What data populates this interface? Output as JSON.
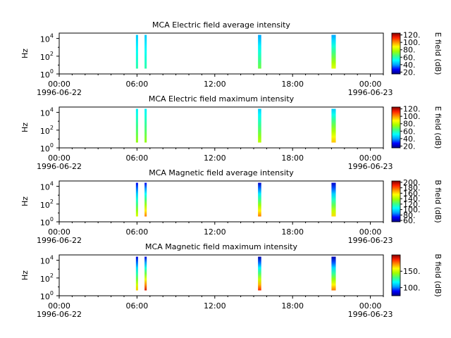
{
  "chart_data": [
    {
      "type": "heatmap",
      "title": "MCA  Electric field average intensity",
      "ylabel": "Hz",
      "colorbar_label": "E field (dB)",
      "colorbar_ticks": [
        "20.",
        "40.",
        "60.",
        "80.",
        "100.",
        "120."
      ],
      "colorbar_range": [
        15,
        125
      ],
      "x_ticks": [
        "00:00",
        "06:00",
        "12:00",
        "18:00",
        "00:00"
      ],
      "x_dates": [
        "1996-06-22",
        "1996-06-23"
      ],
      "y_ticks": [
        "10^0",
        "10^2",
        "10^4"
      ],
      "ylim_hz": [
        1,
        40000
      ],
      "xlim": [
        "1996-06-22T00:00",
        "1996-06-23T01:00"
      ],
      "scale": "log",
      "bursts": [
        {
          "start": "1996-06-22T05:55",
          "end": "1996-06-22T06:05",
          "low_db": 60,
          "high_db": 45
        },
        {
          "start": "1996-06-22T06:35",
          "end": "1996-06-22T06:45",
          "low_db": 60,
          "high_db": 45
        },
        {
          "start": "1996-06-22T15:20",
          "end": "1996-06-22T15:35",
          "low_db": 70,
          "high_db": 40
        },
        {
          "start": "1996-06-22T21:00",
          "end": "1996-06-22T21:20",
          "low_db": 85,
          "high_db": 40
        }
      ]
    },
    {
      "type": "heatmap",
      "title": "MCA  Electric field maximum intensity",
      "ylabel": "Hz",
      "colorbar_label": "E field (dB)",
      "colorbar_ticks": [
        "20.",
        "40.",
        "60.",
        "80.",
        "100.",
        "120."
      ],
      "colorbar_range": [
        15,
        125
      ],
      "x_ticks": [
        "00:00",
        "06:00",
        "12:00",
        "18:00",
        "00:00"
      ],
      "x_dates": [
        "1996-06-22",
        "1996-06-23"
      ],
      "y_ticks": [
        "10^0",
        "10^2",
        "10^4"
      ],
      "ylim_hz": [
        1,
        40000
      ],
      "xlim": [
        "1996-06-22T00:00",
        "1996-06-23T01:00"
      ],
      "scale": "log",
      "bursts": [
        {
          "start": "1996-06-22T05:55",
          "end": "1996-06-22T06:05",
          "low_db": 75,
          "high_db": 50
        },
        {
          "start": "1996-06-22T06:35",
          "end": "1996-06-22T06:45",
          "low_db": 75,
          "high_db": 50
        },
        {
          "start": "1996-06-22T15:20",
          "end": "1996-06-22T15:35",
          "low_db": 80,
          "high_db": 45
        },
        {
          "start": "1996-06-22T21:00",
          "end": "1996-06-22T21:20",
          "low_db": 95,
          "high_db": 45
        }
      ]
    },
    {
      "type": "heatmap",
      "title": "MCA  Magnetic field average intensity",
      "ylabel": "Hz",
      "colorbar_label": "B field (dB)",
      "colorbar_ticks": [
        "60.",
        "80.",
        "100.",
        "120.",
        "140.",
        "160.",
        "180.",
        "200."
      ],
      "colorbar_range": [
        55,
        205
      ],
      "x_ticks": [
        "00:00",
        "06:00",
        "12:00",
        "18:00",
        "00:00"
      ],
      "x_dates": [
        "1996-06-22",
        "1996-06-23"
      ],
      "y_ticks": [
        "10^0",
        "10^2",
        "10^4"
      ],
      "ylim_hz": [
        1,
        40000
      ],
      "xlim": [
        "1996-06-22T00:00",
        "1996-06-23T01:00"
      ],
      "scale": "log",
      "bursts": [
        {
          "start": "1996-06-22T05:55",
          "end": "1996-06-22T06:05",
          "low_db": 150,
          "high_db": 70
        },
        {
          "start": "1996-06-22T06:35",
          "end": "1996-06-22T06:45",
          "low_db": 175,
          "high_db": 70
        },
        {
          "start": "1996-06-22T15:20",
          "end": "1996-06-22T15:35",
          "low_db": 175,
          "high_db": 65
        },
        {
          "start": "1996-06-22T21:00",
          "end": "1996-06-22T21:20",
          "low_db": 160,
          "high_db": 65
        }
      ]
    },
    {
      "type": "heatmap",
      "title": "MCA  Magnetic field maximum intensity",
      "ylabel": "Hz",
      "colorbar_label": "B field (dB)",
      "colorbar_ticks": [
        "100.",
        "150."
      ],
      "colorbar_range": [
        75,
        200
      ],
      "x_ticks": [
        "00:00",
        "06:00",
        "12:00",
        "18:00",
        "00:00"
      ],
      "x_dates": [
        "1996-06-22",
        "1996-06-23"
      ],
      "y_ticks": [
        "10^0",
        "10^2",
        "10^4"
      ],
      "ylim_hz": [
        1,
        40000
      ],
      "xlim": [
        "1996-06-22T00:00",
        "1996-06-23T01:00"
      ],
      "scale": "log",
      "bursts": [
        {
          "start": "1996-06-22T05:55",
          "end": "1996-06-22T06:05",
          "low_db": 165,
          "high_db": 85
        },
        {
          "start": "1996-06-22T06:35",
          "end": "1996-06-22T06:45",
          "low_db": 190,
          "high_db": 85
        },
        {
          "start": "1996-06-22T15:20",
          "end": "1996-06-22T15:35",
          "low_db": 185,
          "high_db": 80
        },
        {
          "start": "1996-06-22T21:00",
          "end": "1996-06-22T21:20",
          "low_db": 175,
          "high_db": 80
        }
      ]
    }
  ]
}
